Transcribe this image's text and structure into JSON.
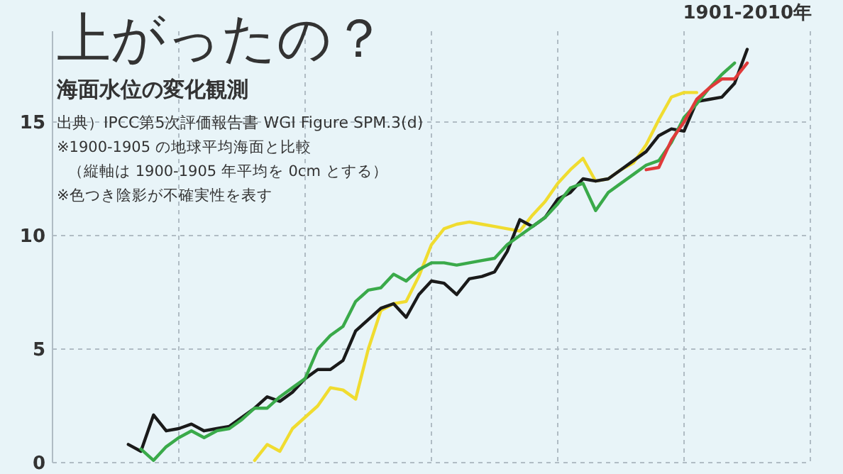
{
  "chart_data": {
    "type": "line",
    "title": "上がったの？",
    "subtitle": "海面水位の変化観測",
    "annotations": [
      "1901-2010年",
      "出典）IPCC第5次評価報告書 WGI Figure SPM.3(d)",
      "※1900-1905 の地球平均海面と比較",
      "（縦軸は 1900-1905 年平均を 0cm とする）",
      "※色つき陰影が不確実性を表す"
    ],
    "categories": [
      null,
      null,
      null,
      null,
      null,
      null,
      null,
      null,
      null,
      null,
      null,
      null,
      null,
      null,
      null,
      null,
      null,
      null,
      null,
      null,
      null,
      null,
      null,
      null,
      null,
      null,
      null,
      null,
      null,
      null,
      null,
      null,
      null,
      null,
      null,
      null,
      null,
      null,
      null,
      null,
      null,
      null,
      null,
      null,
      null,
      null,
      null,
      null,
      null,
      null,
      null,
      null,
      null,
      null,
      null
    ],
    "ylim": [
      0,
      19
    ],
    "yticks": [
      0,
      5,
      10,
      15
    ],
    "grid": true,
    "line_style": "solid",
    "marker": "none",
    "series": [
      {
        "color": "#f0dc30",
        "values": [
          null,
          null,
          null,
          null,
          null,
          null,
          null,
          null,
          null,
          null,
          null,
          null,
          null,
          null,
          null,
          0.1,
          0.8,
          0.5,
          1.5,
          2.0,
          2.5,
          3.3,
          3.2,
          2.8,
          5.0,
          6.7,
          7.0,
          7.1,
          8.2,
          9.6,
          10.3,
          10.5,
          10.6,
          10.5,
          10.4,
          10.3,
          10.2,
          10.9,
          11.5,
          12.3,
          12.9,
          13.4,
          12.4,
          12.5,
          12.9,
          13.2,
          14.0,
          15.1,
          16.1,
          16.3,
          16.3,
          null,
          null,
          null,
          null
        ]
      },
      {
        "color": "#1a1a1a",
        "values": [
          null,
          null,
          null,
          null,
          null,
          0.8,
          0.5,
          2.1,
          1.4,
          1.5,
          1.7,
          1.4,
          1.5,
          1.6,
          2.0,
          2.4,
          2.9,
          2.7,
          3.1,
          3.7,
          4.1,
          4.1,
          4.5,
          5.8,
          6.3,
          6.8,
          7.0,
          6.4,
          7.4,
          8.0,
          7.9,
          7.4,
          8.1,
          8.2,
          8.4,
          9.3,
          10.7,
          10.4,
          10.8,
          11.6,
          11.9,
          12.5,
          12.4,
          12.5,
          12.9,
          13.3,
          13.7,
          14.4,
          14.7,
          14.6,
          15.9,
          16.0,
          16.1,
          16.7,
          18.2
        ]
      },
      {
        "color": "#3aaa4a",
        "values": [
          null,
          null,
          null,
          null,
          null,
          null,
          0.6,
          0.1,
          0.7,
          1.1,
          1.4,
          1.1,
          1.4,
          1.5,
          1.9,
          2.4,
          2.4,
          2.9,
          3.3,
          3.7,
          5.0,
          5.6,
          6.0,
          7.1,
          7.6,
          7.7,
          8.3,
          8.0,
          8.5,
          8.8,
          8.8,
          8.7,
          8.8,
          8.9,
          9.0,
          9.6,
          10.0,
          10.4,
          10.8,
          11.4,
          12.1,
          12.3,
          11.1,
          11.9,
          12.3,
          12.7,
          13.1,
          13.3,
          14.1,
          15.2,
          15.8,
          16.5,
          17.1,
          17.6,
          null
        ]
      },
      {
        "color": "#e03a3a",
        "values": [
          null,
          null,
          null,
          null,
          null,
          null,
          null,
          null,
          null,
          null,
          null,
          null,
          null,
          null,
          null,
          null,
          null,
          null,
          null,
          null,
          null,
          null,
          null,
          null,
          null,
          null,
          null,
          null,
          null,
          null,
          null,
          null,
          null,
          null,
          null,
          null,
          null,
          null,
          null,
          null,
          null,
          null,
          null,
          null,
          null,
          null,
          12.9,
          13.0,
          14.2,
          15.0,
          16.0,
          16.5,
          16.9,
          16.9,
          17.6
        ]
      }
    ]
  }
}
